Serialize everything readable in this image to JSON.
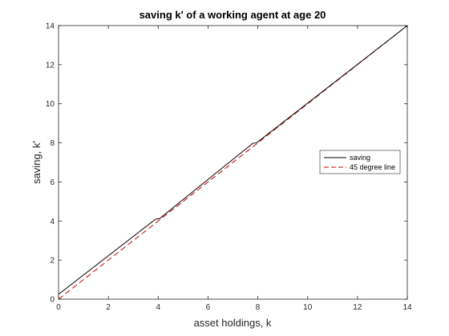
{
  "chart_data": {
    "type": "line",
    "title": "saving k' of a working agent at age 20",
    "xlabel": "asset holdings, k",
    "ylabel": "saving, k'",
    "xlim": [
      0,
      14
    ],
    "ylim": [
      0,
      14
    ],
    "xticks": [
      0,
      2,
      4,
      6,
      8,
      10,
      12,
      14
    ],
    "yticks": [
      0,
      2,
      4,
      6,
      8,
      10,
      12,
      14
    ],
    "grid": false,
    "legend_position": "right",
    "series": [
      {
        "name": "saving",
        "color": "#000000",
        "style": "solid",
        "x": [
          0,
          3.9,
          4.05,
          7.8,
          7.95,
          14
        ],
        "y": [
          0.25,
          4.1,
          4.12,
          7.98,
          8.0,
          14
        ]
      },
      {
        "name": "45 degree line",
        "color": "#cc0000",
        "style": "dashed",
        "x": [
          0,
          14
        ],
        "y": [
          0,
          14
        ]
      }
    ]
  }
}
